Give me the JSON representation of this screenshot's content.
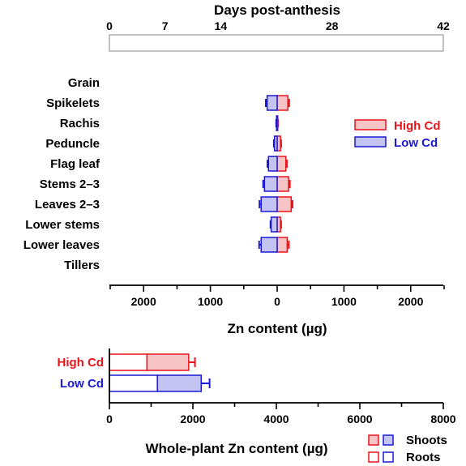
{
  "colors": {
    "high": "#e8141c",
    "low": "#1a1ad6",
    "high_fill": "#f7c4c6",
    "low_fill": "#c4c4f2"
  },
  "chart_data": [
    {
      "type": "bar",
      "subtype": "back-to-back horizontal bars (Low Cd left, High Cd right)",
      "top_axis": {
        "title": "Days post-anthesis",
        "ticks": [
          "0",
          "7",
          "14",
          "28",
          "42"
        ],
        "values": [
          0,
          7,
          14,
          28,
          42
        ]
      },
      "xlabel": "Zn content (µg)",
      "x_ticks": [
        "2000",
        "1000",
        "0",
        "1000",
        "2000"
      ],
      "x_tick_values": [
        -2000,
        -1000,
        0,
        1000,
        2000
      ],
      "xlim": [
        -2500,
        2500
      ],
      "categories": [
        "Grain",
        "Spikelets",
        "Rachis",
        "Peduncle",
        "Flag leaf",
        "Stems 2–3",
        "Leaves 2–3",
        "Lower stems",
        "Lower leaves",
        "Tillers"
      ],
      "series": [
        {
          "name": "High Cd",
          "values": [
            0,
            160,
            10,
            50,
            130,
            170,
            210,
            50,
            150,
            0
          ],
          "errors": [
            0,
            20,
            5,
            10,
            15,
            20,
            20,
            10,
            25,
            0
          ]
        },
        {
          "name": "Low Cd",
          "values": [
            0,
            150,
            10,
            40,
            130,
            190,
            240,
            90,
            240,
            0
          ],
          "errors": [
            0,
            20,
            5,
            10,
            15,
            20,
            25,
            10,
            30,
            0
          ]
        }
      ],
      "legend": {
        "position": "right",
        "entries": [
          "High Cd",
          "Low Cd"
        ]
      }
    },
    {
      "type": "bar",
      "subtype": "stacked horizontal (roots + shoots)",
      "xlabel": "Whole-plant Zn content (µg)",
      "x_ticks": [
        "0",
        "2000",
        "4000",
        "6000",
        "8000"
      ],
      "x_tick_values": [
        0,
        2000,
        4000,
        6000,
        8000
      ],
      "xlim": [
        0,
        8000
      ],
      "categories": [
        "High Cd",
        "Low Cd"
      ],
      "series": [
        {
          "name": "Roots",
          "values": [
            900,
            1150
          ]
        },
        {
          "name": "Shoots",
          "values": [
            1000,
            1050
          ]
        }
      ],
      "totals_error": [
        150,
        200
      ],
      "legend": {
        "position": "bottom-right",
        "entries": [
          "Shoots",
          "Roots"
        ]
      }
    }
  ]
}
